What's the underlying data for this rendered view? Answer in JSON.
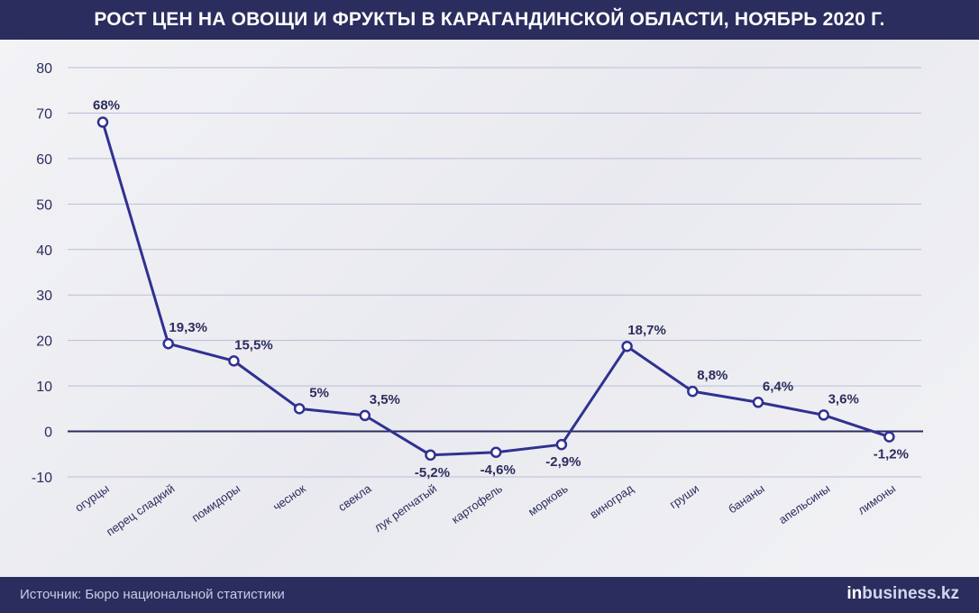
{
  "header": {
    "title": "РОСТ ЦЕН НА ОВОЩИ И ФРУКТЫ В КАРАГАНДИНСКОЙ ОБЛАСТИ, НОЯБРЬ 2020 Г."
  },
  "footer": {
    "source": "Источник: Бюро национальной статистики",
    "brand_prefix": "in",
    "brand_rest": "business.kz"
  },
  "colors": {
    "line": "#2f3191",
    "axis": "#2b2d5e",
    "grid": "#b9bdd6",
    "text": "#2b2d5e",
    "header_bg": "#2b2d5e"
  },
  "chart_data": {
    "type": "line",
    "title": "РОСТ ЦЕН НА ОВОЩИ И ФРУКТЫ В КАРАГАНДИНСКОЙ ОБЛАСТИ, НОЯБРЬ 2020 Г.",
    "xlabel": "",
    "ylabel": "",
    "ylim": [
      -10,
      80
    ],
    "yticks": [
      -10,
      0,
      10,
      20,
      30,
      40,
      50,
      60,
      70,
      80
    ],
    "grid": true,
    "categories": [
      "огурцы",
      "перец сладкий",
      "помидоры",
      "чеснок",
      "свекла",
      "лук репчатый",
      "картофель",
      "морковь",
      "виноград",
      "груши",
      "бананы",
      "апельсины",
      "лимоны"
    ],
    "values": [
      68,
      19.3,
      15.5,
      5,
      3.5,
      -5.2,
      -4.6,
      -2.9,
      18.7,
      8.8,
      6.4,
      3.6,
      -1.2
    ],
    "data_labels": [
      "68%",
      "19,3%",
      "15,5%",
      "5%",
      "3,5%",
      "-5,2%",
      "-4,6%",
      "-2,9%",
      "18,7%",
      "8,8%",
      "6,4%",
      "3,6%",
      "-1,2%"
    ]
  }
}
